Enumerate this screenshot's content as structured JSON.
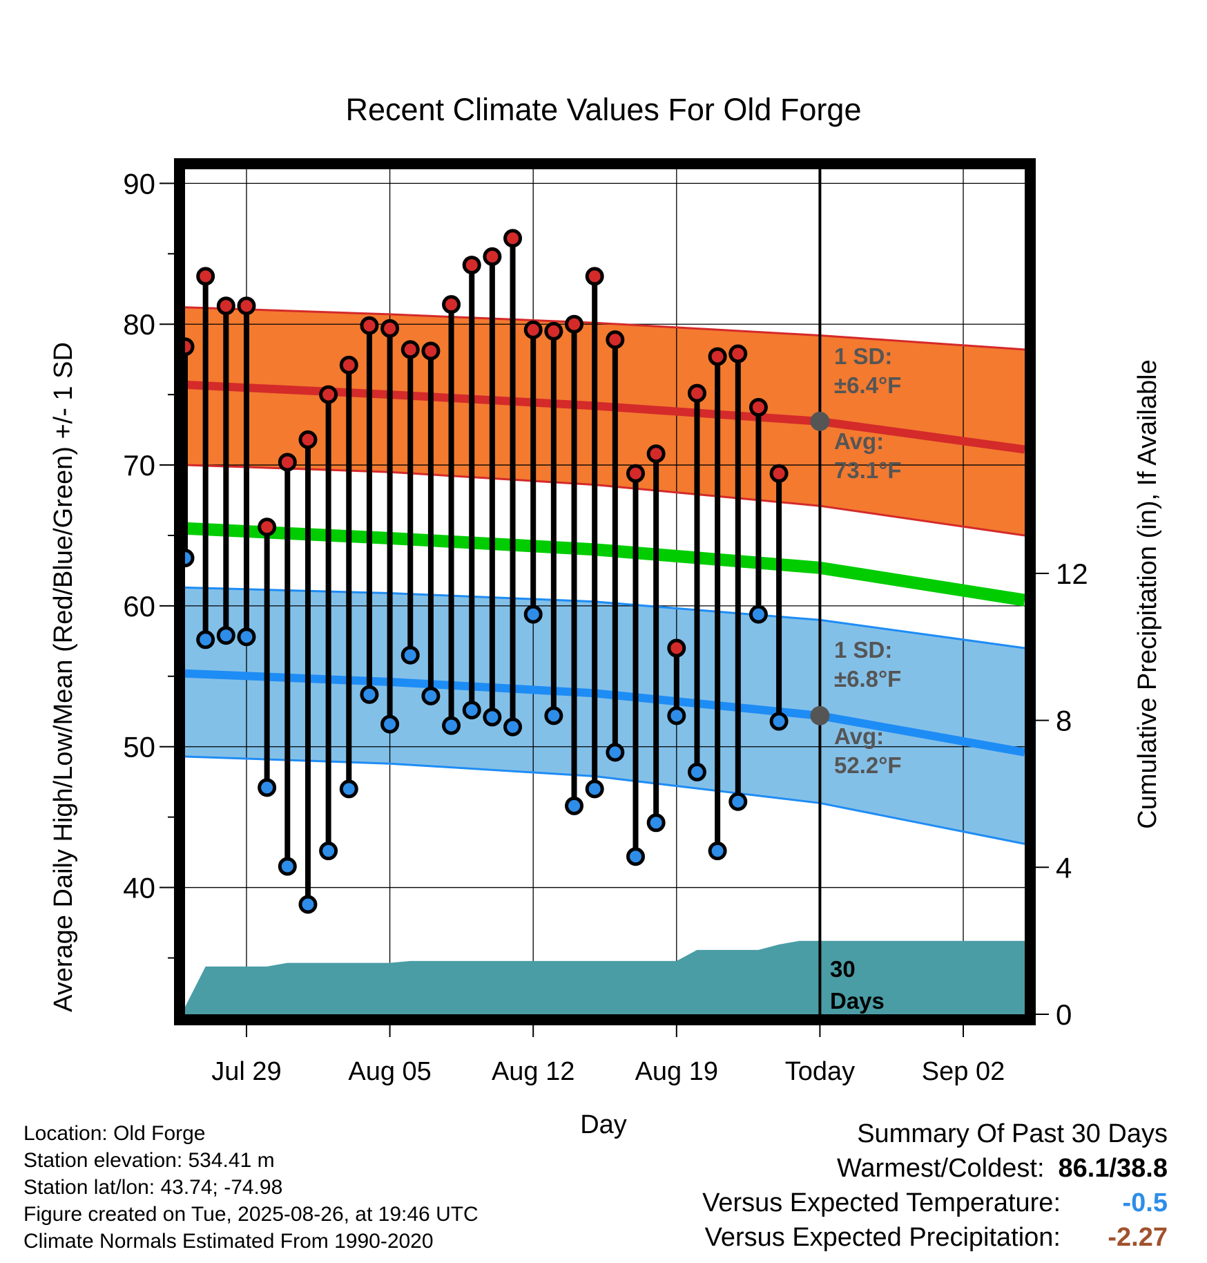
{
  "chart_data": {
    "type": "line",
    "title": "Recent Climate Values For Old Forge",
    "xlabel": "Day",
    "ylabel": "Average Daily High/Low/Mean (Red/Blue/Green) +/- 1 SD",
    "y2label": "Cumulative Precipitation (in), If Available",
    "ylim": [
      31,
      91
    ],
    "y2lim": [
      0,
      23
    ],
    "y_ticks": [
      40,
      50,
      60,
      70,
      80,
      90
    ],
    "y2_ticks": [
      0,
      4,
      8,
      12
    ],
    "grid": true,
    "x_start": "2025-07-26",
    "x_end": "2025-09-05",
    "x_tick_dates": [
      "2025-07-29",
      "2025-08-05",
      "2025-08-12",
      "2025-08-19",
      "2025-08-26",
      "2025-09-02"
    ],
    "x_tick_labels": [
      "Jul 29",
      "Aug 05",
      "Aug 12",
      "Aug 19",
      "Today",
      "Sep 02"
    ],
    "today": "2025-08-26",
    "observed": {
      "dates": [
        "2025-07-26",
        "2025-07-27",
        "2025-07-28",
        "2025-07-29",
        "2025-07-30",
        "2025-07-31",
        "2025-08-01",
        "2025-08-02",
        "2025-08-03",
        "2025-08-04",
        "2025-08-05",
        "2025-08-06",
        "2025-08-07",
        "2025-08-08",
        "2025-08-09",
        "2025-08-10",
        "2025-08-11",
        "2025-08-12",
        "2025-08-13",
        "2025-08-14",
        "2025-08-15",
        "2025-08-16",
        "2025-08-17",
        "2025-08-18",
        "2025-08-19",
        "2025-08-20",
        "2025-08-21",
        "2025-08-22",
        "2025-08-23",
        "2025-08-24",
        "2025-08-25"
      ],
      "highs": [
        78.4,
        83.4,
        81.3,
        81.3,
        65.6,
        70.2,
        71.8,
        75.0,
        77.1,
        79.9,
        79.7,
        78.2,
        78.1,
        81.4,
        84.2,
        84.8,
        86.1,
        79.6,
        79.5,
        80.0,
        83.4,
        78.9,
        69.4,
        70.8,
        57.0,
        75.1,
        77.7,
        77.9,
        74.1,
        69.4,
        null
      ],
      "lows": [
        63.4,
        57.6,
        57.9,
        57.8,
        47.1,
        41.5,
        38.8,
        42.6,
        47.0,
        53.7,
        51.6,
        56.5,
        53.6,
        51.5,
        52.6,
        52.1,
        51.4,
        59.4,
        52.2,
        45.8,
        47.0,
        49.6,
        42.2,
        44.6,
        52.2,
        48.2,
        42.6,
        46.1,
        59.4,
        51.8,
        null
      ],
      "high_color": "#d42a2a",
      "low_color": "#2e8de8"
    },
    "normals": {
      "dates": [
        "2025-07-26",
        "2025-08-05",
        "2025-08-15",
        "2025-08-26",
        "2025-09-05"
      ],
      "high_mean": [
        75.7,
        75.0,
        74.2,
        73.1,
        71.1
      ],
      "high_upper": [
        81.2,
        80.7,
        80.1,
        79.2,
        78.2
      ],
      "high_lower": [
        70.0,
        69.5,
        68.6,
        67.1,
        65.0
      ],
      "low_mean": [
        55.2,
        54.6,
        53.8,
        52.2,
        49.6
      ],
      "low_upper": [
        61.3,
        60.9,
        60.3,
        59.0,
        57.0
      ],
      "low_lower": [
        49.3,
        48.8,
        47.9,
        46.0,
        43.1
      ],
      "mean": [
        65.5,
        64.8,
        64.0,
        62.7,
        60.4
      ],
      "high_band_color": "#f37a2f",
      "high_line_color": "#d42a2a",
      "low_band_color": "#83c0e8",
      "low_line_color": "#1e8cf5",
      "mean_line_color": "#00cc00"
    },
    "precip": {
      "dates": [
        "2025-07-26",
        "2025-07-27",
        "2025-07-28",
        "2025-07-29",
        "2025-07-30",
        "2025-07-31",
        "2025-08-01",
        "2025-08-02",
        "2025-08-03",
        "2025-08-04",
        "2025-08-05",
        "2025-08-06",
        "2025-08-07",
        "2025-08-08",
        "2025-08-09",
        "2025-08-10",
        "2025-08-11",
        "2025-08-12",
        "2025-08-13",
        "2025-08-14",
        "2025-08-15",
        "2025-08-16",
        "2025-08-17",
        "2025-08-18",
        "2025-08-19",
        "2025-08-20",
        "2025-08-21",
        "2025-08-22",
        "2025-08-23",
        "2025-08-24",
        "2025-08-25",
        "2025-09-05"
      ],
      "cumulative": [
        0.2,
        1.3,
        1.3,
        1.3,
        1.3,
        1.4,
        1.4,
        1.4,
        1.4,
        1.4,
        1.4,
        1.45,
        1.45,
        1.45,
        1.45,
        1.45,
        1.45,
        1.45,
        1.45,
        1.45,
        1.45,
        1.45,
        1.45,
        1.45,
        1.45,
        1.75,
        1.75,
        1.75,
        1.75,
        1.9,
        2.0,
        2.0
      ],
      "color": "#4a9da5"
    },
    "annotations": {
      "high_sd_label": "1 SD:",
      "high_sd_value": "±6.4°F",
      "high_avg_label": "Avg:",
      "high_avg_value": "73.1°F",
      "low_sd_label": "1 SD:",
      "low_sd_value": "±6.8°F",
      "low_avg_label": "Avg:",
      "low_avg_value": "52.2°F",
      "period_label_1": "30",
      "period_label_2": "Days",
      "color": "#555555"
    }
  },
  "footer": {
    "location": "Location: Old Forge",
    "elevation": "Station elevation: 534.41 m",
    "latlon": "Station lat/lon: 43.74; -74.98",
    "created": "Figure created on Tue, 2025-08-26, at 19:46 UTC",
    "normals": "Climate Normals Estimated From 1990-2020"
  },
  "summary": {
    "heading": "Summary Of Past 30 Days",
    "warm_cold_label": "Warmest/Coldest:",
    "warm_cold_value": "86.1/38.8",
    "temp_label": "Versus Expected Temperature:",
    "temp_value": "-0.5",
    "temp_color": "#2e8de8",
    "precip_label": "Versus Expected Precipitation:",
    "precip_value": "-2.27",
    "precip_color": "#a0522d"
  }
}
